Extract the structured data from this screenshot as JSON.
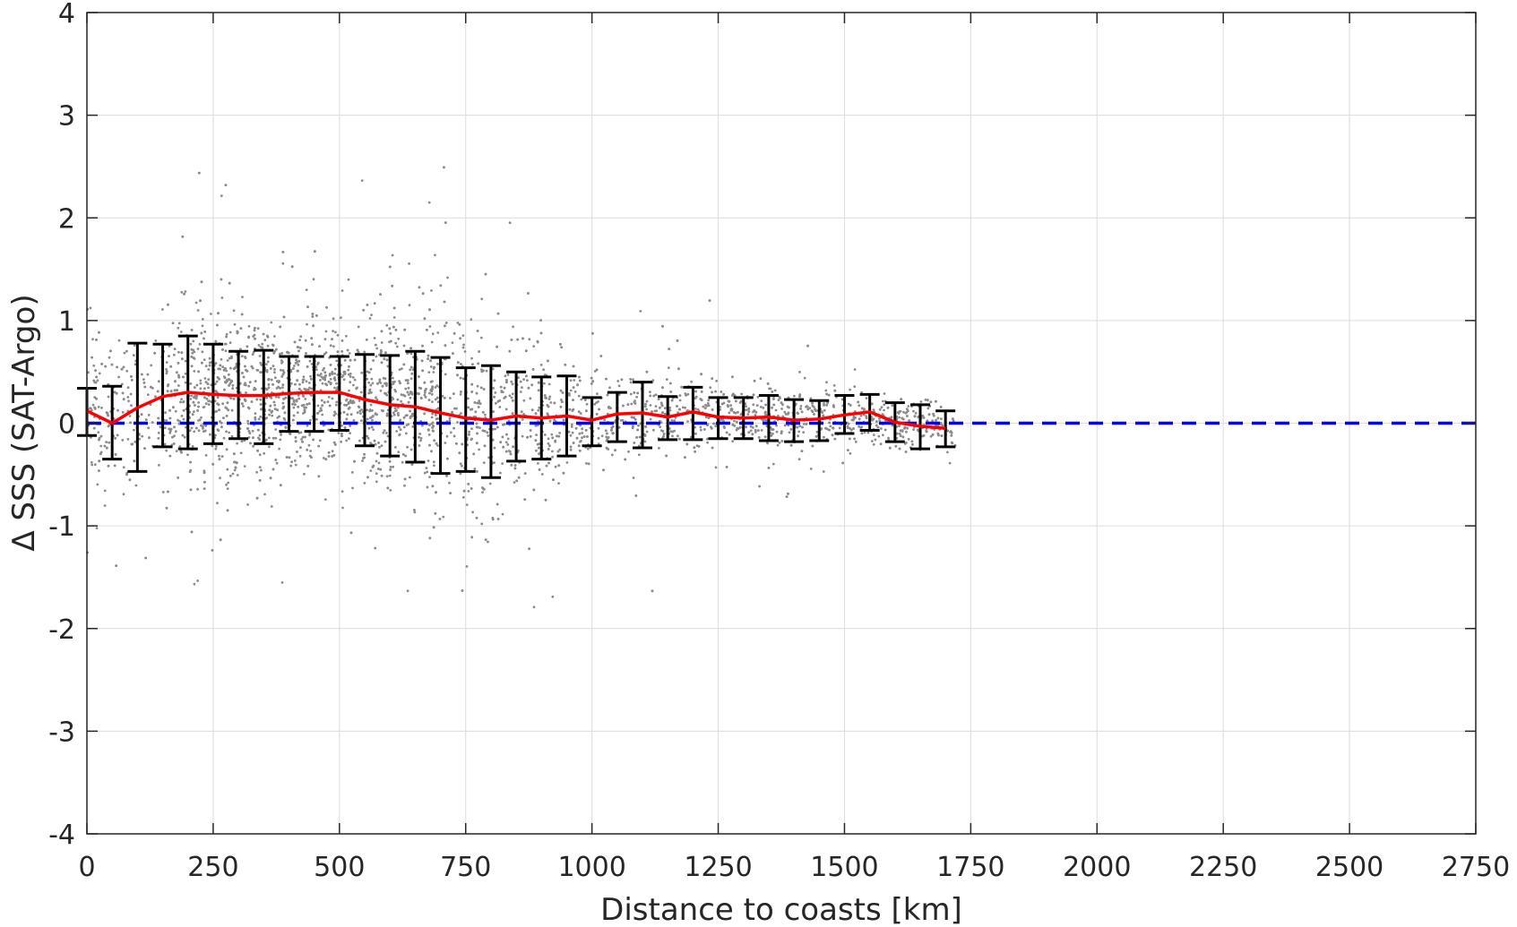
{
  "chart_data": {
    "type": "scatter",
    "xlabel": "Distance to coasts [km]",
    "ylabel": "Δ SSS (SAT-Argo)",
    "xlim": [
      0,
      2750
    ],
    "ylim": [
      -4,
      4
    ],
    "xticks": [
      0,
      250,
      500,
      750,
      1000,
      1250,
      1500,
      1750,
      2000,
      2250,
      2500,
      2750
    ],
    "yticks": [
      -4,
      -3,
      -2,
      -1,
      0,
      1,
      2,
      3,
      4
    ],
    "grid": true,
    "legend": "none",
    "colors": {
      "scatter": "#8c8c8c",
      "mean_line": "#ff0000",
      "errorbar": "#000000",
      "reference_line": "#0000ff",
      "grid": "#dcdcdc",
      "axes": "#262626"
    },
    "reference_line": {
      "y": 0,
      "style": "dashed"
    },
    "mean_line": {
      "x": [
        0,
        50,
        100,
        150,
        200,
        250,
        300,
        350,
        400,
        450,
        500,
        550,
        600,
        650,
        700,
        750,
        800,
        850,
        900,
        950,
        1000,
        1050,
        1100,
        1150,
        1200,
        1250,
        1300,
        1350,
        1400,
        1450,
        1500,
        1550,
        1600,
        1650,
        1700
      ],
      "y": [
        0.12,
        0.0,
        0.15,
        0.26,
        0.3,
        0.28,
        0.27,
        0.27,
        0.29,
        0.3,
        0.3,
        0.23,
        0.18,
        0.16,
        0.1,
        0.05,
        0.03,
        0.07,
        0.05,
        0.07,
        0.03,
        0.09,
        0.1,
        0.06,
        0.11,
        0.06,
        0.05,
        0.06,
        0.03,
        0.04,
        0.08,
        0.11,
        0.01,
        -0.03,
        -0.05
      ]
    },
    "error_bars": {
      "x": [
        0,
        50,
        100,
        150,
        200,
        250,
        300,
        350,
        400,
        450,
        500,
        550,
        600,
        650,
        700,
        750,
        800,
        850,
        900,
        950,
        1000,
        1050,
        1100,
        1150,
        1200,
        1250,
        1300,
        1350,
        1400,
        1450,
        1500,
        1550,
        1600,
        1650,
        1700
      ],
      "lower": [
        -0.12,
        -0.35,
        -0.47,
        -0.23,
        -0.25,
        -0.2,
        -0.15,
        -0.2,
        -0.08,
        -0.08,
        -0.07,
        -0.22,
        -0.32,
        -0.38,
        -0.49,
        -0.47,
        -0.53,
        -0.37,
        -0.35,
        -0.32,
        -0.22,
        -0.18,
        -0.24,
        -0.16,
        -0.16,
        -0.15,
        -0.15,
        -0.17,
        -0.18,
        -0.17,
        -0.1,
        -0.07,
        -0.18,
        -0.25,
        -0.23
      ],
      "upper": [
        0.34,
        0.36,
        0.78,
        0.77,
        0.85,
        0.77,
        0.7,
        0.71,
        0.65,
        0.65,
        0.65,
        0.67,
        0.66,
        0.7,
        0.64,
        0.54,
        0.56,
        0.5,
        0.45,
        0.46,
        0.25,
        0.3,
        0.4,
        0.26,
        0.35,
        0.25,
        0.25,
        0.27,
        0.23,
        0.22,
        0.27,
        0.28,
        0.2,
        0.18,
        0.12
      ]
    },
    "scatter_cloud": {
      "description_bins_km": [
        0,
        100,
        200,
        300,
        400,
        500,
        600,
        700,
        800,
        900,
        1000,
        1100,
        1200,
        1300,
        1400,
        1500,
        1600,
        1700
      ],
      "bin_mean": [
        0.1,
        0.2,
        0.28,
        0.27,
        0.28,
        0.3,
        0.2,
        0.12,
        0.04,
        0.05,
        0.04,
        0.09,
        0.09,
        0.05,
        0.03,
        0.08,
        0.02,
        -0.05
      ],
      "bin_spread": [
        0.35,
        0.4,
        0.45,
        0.38,
        0.3,
        0.32,
        0.4,
        0.45,
        0.42,
        0.35,
        0.2,
        0.2,
        0.18,
        0.16,
        0.15,
        0.12,
        0.12,
        0.1
      ],
      "point_count": 4200,
      "x_max": 1720
    }
  }
}
